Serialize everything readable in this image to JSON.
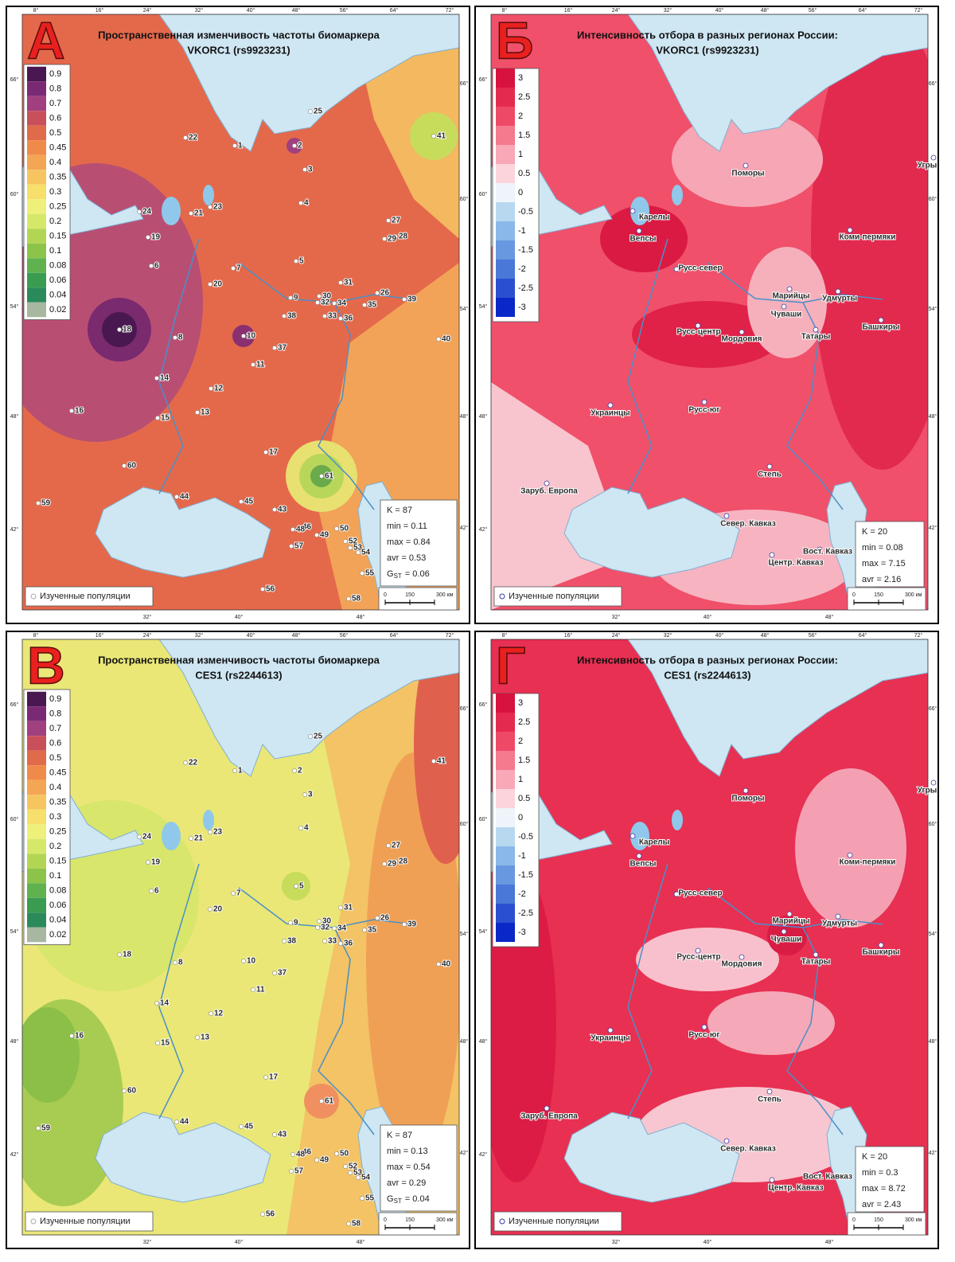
{
  "grid_labels": {
    "top": [
      "8°",
      "16°",
      "24°",
      "32°",
      "40°",
      "48°",
      "56°",
      "64°",
      "72°"
    ],
    "left": [
      "66°",
      "60°",
      "54°",
      "48°",
      "42°"
    ],
    "right": [
      "66°",
      "60°",
      "54°",
      "48°",
      "42°"
    ],
    "bottom": [
      "32°",
      "40°",
      "48°"
    ]
  },
  "legend_note": "Изученные популяции",
  "scale_bar": [
    "0",
    "150",
    "300 км"
  ],
  "panels": [
    {
      "letter": "А",
      "title": [
        "Пространственная изменчивость частоты биомаркера",
        "VKORC1 (rs9923231)"
      ],
      "legend": {
        "values": [
          0.9,
          0.8,
          0.7,
          0.6,
          0.5,
          0.45,
          0.4,
          0.35,
          0.3,
          0.25,
          0.2,
          0.15,
          0.1,
          0.08,
          0.06,
          0.04,
          0.02
        ],
        "colors": [
          "#4a1850",
          "#7a2a74",
          "#a0407f",
          "#c8505a",
          "#e06b4a",
          "#f08a4a",
          "#f3a653",
          "#f6c560",
          "#f6df6a",
          "#eef07a",
          "#d6e86a",
          "#b2d654",
          "#8cc44a",
          "#5fb24e",
          "#3a9c50",
          "#2a8a5a",
          "#a8b8a0"
        ]
      },
      "stats": [
        "K = 87",
        "min = 0.11",
        "max = 0.84",
        "avr = 0.53"
      ],
      "gst": {
        "symbol": "G",
        "subscript": "ST",
        "value": "= 0.06"
      },
      "points": [
        "1",
        "2",
        "3",
        "4",
        "5",
        "6",
        "7",
        "8",
        "9",
        "10",
        "11",
        "12",
        "13",
        "14",
        "15",
        "16",
        "17",
        "18",
        "19",
        "20",
        "21",
        "22",
        "23",
        "24",
        "25",
        "26",
        "27",
        "28",
        "29",
        "30",
        "31",
        "32",
        "33",
        "34",
        "35",
        "36",
        "37",
        "38",
        "39",
        "40",
        "41",
        "43",
        "44",
        "45",
        "46",
        "48",
        "49",
        "50",
        "52",
        "53",
        "54",
        "55",
        "56",
        "57",
        "58",
        "59",
        "60",
        "61"
      ]
    },
    {
      "letter": "Б",
      "title": [
        "Интенсивность отбора в разных регионах России:",
        "VKORC1 (rs9923231)"
      ],
      "legend": {
        "values": [
          3,
          2.5,
          2,
          1.5,
          1,
          0.5,
          0,
          -0.5,
          -1,
          -1.5,
          -2,
          -2.5,
          -3
        ],
        "colors": [
          "#d8123e",
          "#e52a50",
          "#ee4a68",
          "#f47a8e",
          "#f8a8b6",
          "#fbd4dc",
          "#eef4fa",
          "#b8d8f0",
          "#8ab8e8",
          "#6898e0",
          "#4a78d8",
          "#2a50d0",
          "#0a28c8"
        ]
      },
      "stats": [
        "K = 20",
        "min = 0.08",
        "max = 7.15",
        "avr = 2.16"
      ],
      "points": [
        "Поморы",
        "Угры",
        "Карелы",
        "Вепсы",
        "Коми-пермяки",
        "Русс-север",
        "Марийцы",
        "Удмурты",
        "Чуваши",
        "Башкиры",
        "Русс-центр",
        "Мордовия",
        "Татары",
        "Украинцы",
        "Русс-юг",
        "Степь",
        "Заруб. Европа",
        "Север. Кавказ",
        "Вост. Кавказ",
        "Центр. Кавказ"
      ]
    },
    {
      "letter": "В",
      "title": [
        "Пространственная изменчивость частоты биомаркера",
        "CES1 (rs2244613)"
      ],
      "legend": {
        "values": [
          0.9,
          0.8,
          0.7,
          0.6,
          0.5,
          0.45,
          0.4,
          0.35,
          0.3,
          0.25,
          0.2,
          0.15,
          0.1,
          0.08,
          0.06,
          0.04,
          0.02
        ],
        "colors": [
          "#4a1850",
          "#7a2a74",
          "#a0407f",
          "#c8505a",
          "#e06b4a",
          "#f08a4a",
          "#f3a653",
          "#f6c560",
          "#f6df6a",
          "#eef07a",
          "#d6e86a",
          "#b2d654",
          "#8cc44a",
          "#5fb24e",
          "#3a9c50",
          "#2a8a5a",
          "#a8b8a0"
        ]
      },
      "stats": [
        "K = 87",
        "min = 0.13",
        "max = 0.54",
        "avr = 0.29"
      ],
      "gst": {
        "symbol": "G",
        "subscript": "ST",
        "value": "= 0.04"
      },
      "points": [
        "1",
        "2",
        "3",
        "4",
        "5",
        "6",
        "7",
        "8",
        "9",
        "10",
        "11",
        "12",
        "13",
        "14",
        "15",
        "16",
        "17",
        "18",
        "19",
        "20",
        "21",
        "22",
        "23",
        "24",
        "25",
        "26",
        "27",
        "28",
        "29",
        "30",
        "31",
        "32",
        "33",
        "34",
        "35",
        "36",
        "37",
        "38",
        "39",
        "40",
        "41",
        "43",
        "44",
        "45",
        "46",
        "48",
        "49",
        "50",
        "52",
        "53",
        "54",
        "55",
        "56",
        "57",
        "58",
        "59",
        "60",
        "61"
      ]
    },
    {
      "letter": "Г",
      "title": [
        "Интенсивность отбора в разных регионах России:",
        "CES1 (rs2244613)"
      ],
      "legend": {
        "values": [
          3,
          2.5,
          2,
          1.5,
          1,
          0.5,
          0,
          -0.5,
          -1,
          -1.5,
          -2,
          -2.5,
          -3
        ],
        "colors": [
          "#d8123e",
          "#e52a50",
          "#ee4a68",
          "#f47a8e",
          "#f8a8b6",
          "#fbd4dc",
          "#eef4fa",
          "#b8d8f0",
          "#8ab8e8",
          "#6898e0",
          "#4a78d8",
          "#2a50d0",
          "#0a28c8"
        ]
      },
      "stats": [
        "K = 20",
        "min = 0.3",
        "max = 8.72",
        "avr = 2.43"
      ],
      "points": [
        "Поморы",
        "Угры",
        "Карелы",
        "Вепсы",
        "Коми-пермяки",
        "Русс-север",
        "Марийцы",
        "Удмурты",
        "Чуваши",
        "Башкиры",
        "Русс-центр",
        "Мордовия",
        "Татары",
        "Украинцы",
        "Русс-юг",
        "Степь",
        "Заруб. Европа",
        "Север. Кавказ",
        "Вост. Кавказ",
        "Центр. Кавказ"
      ]
    }
  ]
}
